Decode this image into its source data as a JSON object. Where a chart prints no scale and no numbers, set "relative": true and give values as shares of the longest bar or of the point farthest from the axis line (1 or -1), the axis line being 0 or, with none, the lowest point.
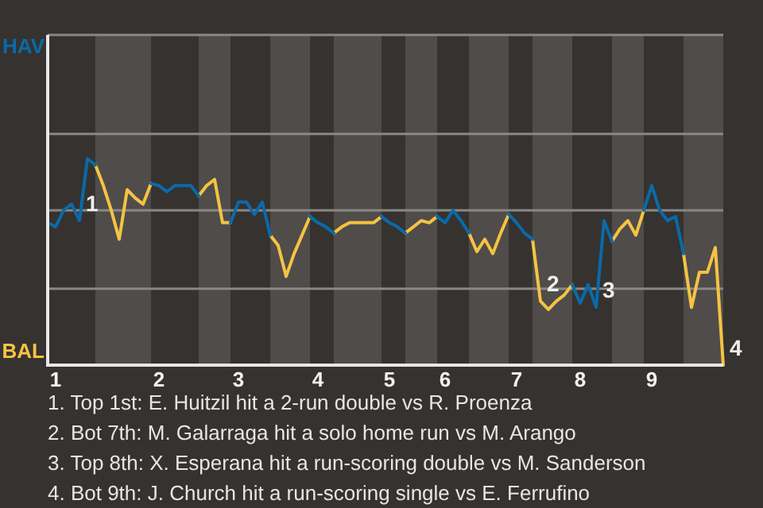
{
  "chart_data": {
    "type": "line",
    "relative": true,
    "categories": [
      null,
      "1",
      null,
      null,
      null,
      null,
      null,
      null,
      null,
      null,
      null,
      null,
      null,
      null,
      "2",
      null,
      null,
      null,
      null,
      null,
      null,
      null,
      null,
      null,
      "3",
      null,
      null,
      null,
      null,
      null,
      null,
      null,
      null,
      null,
      "4",
      null,
      null,
      null,
      null,
      null,
      null,
      null,
      null,
      "5",
      null,
      null,
      null,
      null,
      null,
      null,
      "6",
      null,
      null,
      null,
      null,
      null,
      null,
      null,
      null,
      "7",
      null,
      null,
      null,
      null,
      null,
      null,
      null,
      "8",
      null,
      null,
      null,
      null,
      null,
      null,
      null,
      null,
      "9",
      null,
      null,
      null,
      null,
      null,
      null,
      null,
      null,
      null
    ],
    "marker": "none",
    "line_style": "solid",
    "ref_lines": [
      {
        "axis": "y",
        "value": 0.37,
        "color": "#8a8784"
      },
      {
        "axis": "y",
        "value": 0.75,
        "color": "#8a8784"
      },
      {
        "axis": "y",
        "value": 1.12,
        "color": "#8a8784"
      }
    ],
    "series": [
      {
        "name": "HAV",
        "color": "#0a6aa8",
        "values": [
          0.69,
          0.67,
          0.75,
          0.78,
          0.7,
          1,
          0.97,
          null,
          null,
          null,
          null,
          null,
          null,
          0.88,
          0.87,
          0.84,
          0.87,
          0.87,
          0.87,
          0.82,
          null,
          null,
          null,
          0.69,
          0.79,
          0.79,
          0.73,
          0.79,
          0.63,
          null,
          null,
          null,
          null,
          0.72,
          0.69,
          0.67,
          0.64,
          null,
          null,
          null,
          null,
          null,
          0.72,
          0.69,
          0.67,
          0.64,
          null,
          null,
          null,
          0.72,
          0.69,
          0.75,
          0.7,
          0.64,
          null,
          null,
          null,
          null,
          0.73,
          0.69,
          0.64,
          0.61,
          null,
          null,
          null,
          null,
          0.39,
          0.3,
          0.39,
          0.28,
          0.7,
          0.6,
          null,
          null,
          null,
          0.75,
          0.87,
          0.75,
          0.7,
          0.72,
          0.54,
          null,
          null,
          null,
          null,
          null
        ]
      },
      {
        "name": "BAL",
        "color": "#f5c342",
        "values": [
          null,
          null,
          null,
          null,
          null,
          null,
          0.97,
          0.87,
          0.75,
          0.61,
          0.85,
          0.81,
          0.78,
          0.88,
          null,
          null,
          null,
          null,
          null,
          0.82,
          0.87,
          0.9,
          0.69,
          0.69,
          null,
          null,
          null,
          null,
          0.63,
          0.58,
          0.43,
          0.54,
          0.63,
          0.72,
          null,
          null,
          0.64,
          0.67,
          0.69,
          0.69,
          0.69,
          0.69,
          0.72,
          null,
          null,
          0.64,
          0.67,
          0.7,
          0.69,
          0.72,
          null,
          null,
          null,
          0.64,
          0.55,
          0.61,
          0.54,
          0.64,
          0.73,
          null,
          null,
          0.61,
          0.31,
          0.27,
          0.31,
          0.34,
          0.39,
          null,
          null,
          null,
          null,
          0.6,
          0.66,
          0.7,
          0.63,
          0.75,
          null,
          null,
          null,
          null,
          0.54,
          0.28,
          0.45,
          0.45,
          0.57,
          0
        ]
      }
    ],
    "annotations": [
      "1",
      "2",
      "3",
      "4",
      "1. Top 1st: E. Huitzil hit a 2-run double vs R. Proenza",
      "2. Bot 7th: M. Galarraga hit a solo home run vs M. Arango",
      "3. Top 8th: X. Esperana hit a run-scoring double vs M. Sanderson",
      "4. Bot 9th: J. Church hit a run-scoring single vs E. Ferrufino"
    ]
  }
}
